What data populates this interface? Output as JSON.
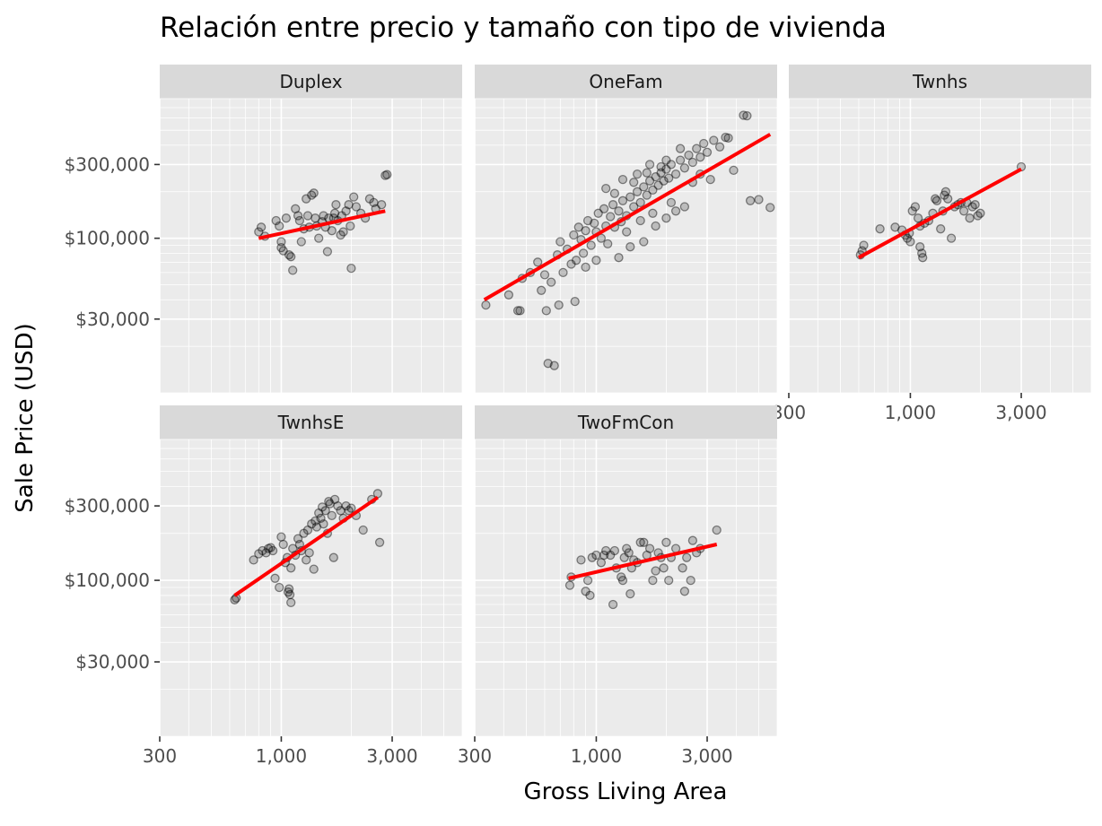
{
  "chart_data": {
    "type": "scatter",
    "title": "Relación entre precio y tamaño con tipo de vivienda",
    "xlabel": "Gross Living Area",
    "ylabel": "Sale Price (USD)",
    "x_scale": "log10",
    "y_scale": "log10",
    "xlim": [
      300,
      6000
    ],
    "ylim": [
      10000,
      800000
    ],
    "x_ticks": [
      300,
      1000,
      3000
    ],
    "x_tick_labels": [
      "300",
      "1,000",
      "3,000"
    ],
    "y_ticks": [
      30000,
      100000,
      300000
    ],
    "y_tick_labels": [
      "$30,000",
      "$100,000",
      "$300,000"
    ],
    "grid": true,
    "legend": "none",
    "point_style": {
      "color": "#000000",
      "opacity": 0.2
    },
    "fit_line": {
      "color": "#ff0000",
      "method": "linear regression on log scales"
    },
    "facets": [
      {
        "name": "Duplex",
        "fit": [
          [
            800,
            100000
          ],
          [
            2800,
            150000
          ]
        ],
        "points": [
          [
            800,
            110000
          ],
          [
            820,
            118000
          ],
          [
            850,
            103000
          ],
          [
            950,
            130000
          ],
          [
            980,
            120000
          ],
          [
            1000,
            95000
          ],
          [
            1000,
            87000
          ],
          [
            1020,
            83000
          ],
          [
            1050,
            135000
          ],
          [
            1080,
            78000
          ],
          [
            1100,
            76000
          ],
          [
            1120,
            62000
          ],
          [
            1150,
            155000
          ],
          [
            1180,
            140000
          ],
          [
            1200,
            130000
          ],
          [
            1220,
            95000
          ],
          [
            1250,
            115000
          ],
          [
            1280,
            180000
          ],
          [
            1300,
            140000
          ],
          [
            1320,
            118000
          ],
          [
            1350,
            190000
          ],
          [
            1380,
            196000
          ],
          [
            1400,
            135000
          ],
          [
            1420,
            120000
          ],
          [
            1450,
            100000
          ],
          [
            1500,
            128000
          ],
          [
            1520,
            140000
          ],
          [
            1550,
            118000
          ],
          [
            1580,
            82000
          ],
          [
            1600,
            135000
          ],
          [
            1650,
            112000
          ],
          [
            1680,
            135000
          ],
          [
            1700,
            145000
          ],
          [
            1720,
            165000
          ],
          [
            1750,
            130000
          ],
          [
            1800,
            105000
          ],
          [
            1820,
            140000
          ],
          [
            1850,
            110000
          ],
          [
            1900,
            150000
          ],
          [
            1950,
            165000
          ],
          [
            1980,
            120000
          ],
          [
            2000,
            64000
          ],
          [
            2050,
            185000
          ],
          [
            2100,
            160000
          ],
          [
            2200,
            145000
          ],
          [
            2300,
            135000
          ],
          [
            2400,
            180000
          ],
          [
            2500,
            170000
          ],
          [
            2550,
            155000
          ],
          [
            2700,
            165000
          ],
          [
            2800,
            255000
          ],
          [
            2850,
            258000
          ]
        ]
      },
      {
        "name": "OneFam",
        "fit": [
          [
            330,
            40000
          ],
          [
            5600,
            470000
          ]
        ],
        "points": [
          [
            335,
            37000
          ],
          [
            420,
            43000
          ],
          [
            460,
            34000
          ],
          [
            470,
            34000
          ],
          [
            580,
            46000
          ],
          [
            610,
            34000
          ],
          [
            620,
            15500
          ],
          [
            660,
            15000
          ],
          [
            690,
            37000
          ],
          [
            810,
            39000
          ],
          [
            480,
            55000
          ],
          [
            520,
            60000
          ],
          [
            560,
            70000
          ],
          [
            600,
            58000
          ],
          [
            640,
            52000
          ],
          [
            680,
            78000
          ],
          [
            700,
            95000
          ],
          [
            720,
            60000
          ],
          [
            750,
            85000
          ],
          [
            780,
            68000
          ],
          [
            800,
            105000
          ],
          [
            820,
            72000
          ],
          [
            840,
            118000
          ],
          [
            860,
            98000
          ],
          [
            880,
            80000
          ],
          [
            900,
            112000
          ],
          [
            920,
            130000
          ],
          [
            950,
            90000
          ],
          [
            980,
            125000
          ],
          [
            1000,
            110000
          ],
          [
            1020,
            145000
          ],
          [
            1050,
            100000
          ],
          [
            1080,
            155000
          ],
          [
            1100,
            120000
          ],
          [
            1120,
            92000
          ],
          [
            1150,
            138000
          ],
          [
            1180,
            165000
          ],
          [
            1200,
            118000
          ],
          [
            1250,
            150000
          ],
          [
            1280,
            128000
          ],
          [
            1300,
            175000
          ],
          [
            1350,
            140000
          ],
          [
            1400,
            185000
          ],
          [
            1450,
            160000
          ],
          [
            1500,
            200000
          ],
          [
            1550,
            170000
          ],
          [
            1600,
            215000
          ],
          [
            1650,
            190000
          ],
          [
            1700,
            235000
          ],
          [
            1750,
            205000
          ],
          [
            1800,
            250000
          ],
          [
            1850,
            220000
          ],
          [
            1900,
            265000
          ],
          [
            1950,
            235000
          ],
          [
            2000,
            280000
          ],
          [
            2050,
            245000
          ],
          [
            2100,
            300000
          ],
          [
            2200,
            260000
          ],
          [
            2300,
            320000
          ],
          [
            2400,
            285000
          ],
          [
            2500,
            345000
          ],
          [
            2600,
            310000
          ],
          [
            2700,
            380000
          ],
          [
            2800,
            335000
          ],
          [
            2900,
            410000
          ],
          [
            3000,
            360000
          ],
          [
            3200,
            430000
          ],
          [
            3400,
            390000
          ],
          [
            3600,
            450000
          ],
          [
            4300,
            625000
          ],
          [
            4450,
            620000
          ],
          [
            3700,
            445000
          ],
          [
            3900,
            275000
          ],
          [
            4600,
            175000
          ],
          [
            5000,
            178000
          ],
          [
            5600,
            158000
          ],
          [
            1250,
            75000
          ],
          [
            1400,
            88000
          ],
          [
            1600,
            95000
          ],
          [
            1800,
            120000
          ],
          [
            2000,
            135000
          ],
          [
            2200,
            150000
          ],
          [
            2400,
            160000
          ],
          [
            1000,
            72000
          ],
          [
            900,
            65000
          ],
          [
            1500,
            260000
          ],
          [
            1300,
            240000
          ],
          [
            1100,
            210000
          ],
          [
            1700,
            300000
          ],
          [
            2000,
            320000
          ],
          [
            2300,
            380000
          ],
          [
            1200,
            195000
          ],
          [
            1450,
            230000
          ],
          [
            1650,
            265000
          ],
          [
            1900,
            290000
          ],
          [
            2600,
            230000
          ],
          [
            2800,
            260000
          ],
          [
            3100,
            240000
          ],
          [
            1350,
            110000
          ],
          [
            1550,
            130000
          ],
          [
            1750,
            145000
          ],
          [
            2100,
            170000
          ]
        ]
      },
      {
        "name": "Twnhs",
        "fit": [
          [
            600,
            75000
          ],
          [
            3000,
            280000
          ]
        ],
        "points": [
          [
            610,
            78000
          ],
          [
            620,
            83000
          ],
          [
            630,
            90000
          ],
          [
            740,
            115000
          ],
          [
            860,
            118000
          ],
          [
            920,
            113000
          ],
          [
            950,
            105000
          ],
          [
            970,
            100000
          ],
          [
            990,
            108000
          ],
          [
            1000,
            95000
          ],
          [
            1020,
            150000
          ],
          [
            1050,
            160000
          ],
          [
            1080,
            135000
          ],
          [
            1100,
            120000
          ],
          [
            1100,
            88000
          ],
          [
            1120,
            80000
          ],
          [
            1130,
            75000
          ],
          [
            1150,
            125000
          ],
          [
            1200,
            130000
          ],
          [
            1250,
            145000
          ],
          [
            1280,
            180000
          ],
          [
            1300,
            175000
          ],
          [
            1350,
            115000
          ],
          [
            1380,
            150000
          ],
          [
            1400,
            190000
          ],
          [
            1420,
            200000
          ],
          [
            1450,
            180000
          ],
          [
            1500,
            100000
          ],
          [
            1550,
            160000
          ],
          [
            1600,
            165000
          ],
          [
            1650,
            170000
          ],
          [
            1700,
            150000
          ],
          [
            1750,
            170000
          ],
          [
            1800,
            135000
          ],
          [
            1850,
            160000
          ],
          [
            1900,
            165000
          ],
          [
            1950,
            140000
          ],
          [
            2000,
            145000
          ],
          [
            3000,
            290000
          ]
        ]
      },
      {
        "name": "TwnhsE",
        "fit": [
          [
            630,
            80000
          ],
          [
            2600,
            340000
          ]
        ],
        "points": [
          [
            630,
            75000
          ],
          [
            640,
            77000
          ],
          [
            760,
            135000
          ],
          [
            800,
            148000
          ],
          [
            830,
            155000
          ],
          [
            860,
            150000
          ],
          [
            880,
            160000
          ],
          [
            900,
            162000
          ],
          [
            920,
            155000
          ],
          [
            940,
            103000
          ],
          [
            980,
            90000
          ],
          [
            1000,
            190000
          ],
          [
            1020,
            170000
          ],
          [
            1040,
            130000
          ],
          [
            1060,
            140000
          ],
          [
            1070,
            84000
          ],
          [
            1080,
            88000
          ],
          [
            1090,
            81000
          ],
          [
            1100,
            120000
          ],
          [
            1100,
            72000
          ],
          [
            1120,
            160000
          ],
          [
            1150,
            145000
          ],
          [
            1180,
            185000
          ],
          [
            1200,
            170000
          ],
          [
            1220,
            155000
          ],
          [
            1250,
            200000
          ],
          [
            1280,
            135000
          ],
          [
            1300,
            210000
          ],
          [
            1320,
            150000
          ],
          [
            1350,
            230000
          ],
          [
            1380,
            118000
          ],
          [
            1400,
            240000
          ],
          [
            1420,
            220000
          ],
          [
            1450,
            270000
          ],
          [
            1480,
            250000
          ],
          [
            1500,
            295000
          ],
          [
            1520,
            230000
          ],
          [
            1550,
            280000
          ],
          [
            1580,
            200000
          ],
          [
            1600,
            320000
          ],
          [
            1620,
            310000
          ],
          [
            1650,
            260000
          ],
          [
            1680,
            140000
          ],
          [
            1700,
            330000
          ],
          [
            1750,
            300000
          ],
          [
            1800,
            280000
          ],
          [
            1850,
            250000
          ],
          [
            1900,
            300000
          ],
          [
            1950,
            280000
          ],
          [
            2000,
            290000
          ],
          [
            2100,
            260000
          ],
          [
            2250,
            210000
          ],
          [
            2450,
            330000
          ],
          [
            2600,
            360000
          ],
          [
            2650,
            175000
          ]
        ]
      },
      {
        "name": "TwoFmCon",
        "fit": [
          [
            760,
            103000
          ],
          [
            3300,
            170000
          ]
        ],
        "points": [
          [
            770,
            93000
          ],
          [
            780,
            105000
          ],
          [
            860,
            135000
          ],
          [
            900,
            85000
          ],
          [
            920,
            100000
          ],
          [
            940,
            80000
          ],
          [
            960,
            140000
          ],
          [
            1000,
            145000
          ],
          [
            1050,
            130000
          ],
          [
            1080,
            145000
          ],
          [
            1100,
            155000
          ],
          [
            1150,
            145000
          ],
          [
            1180,
            70000
          ],
          [
            1200,
            155000
          ],
          [
            1220,
            120000
          ],
          [
            1280,
            105000
          ],
          [
            1300,
            100000
          ],
          [
            1320,
            140000
          ],
          [
            1350,
            160000
          ],
          [
            1380,
            150000
          ],
          [
            1400,
            82000
          ],
          [
            1420,
            120000
          ],
          [
            1450,
            135000
          ],
          [
            1500,
            130000
          ],
          [
            1550,
            175000
          ],
          [
            1600,
            175000
          ],
          [
            1650,
            145000
          ],
          [
            1700,
            160000
          ],
          [
            1750,
            100000
          ],
          [
            1800,
            115000
          ],
          [
            1850,
            150000
          ],
          [
            1900,
            140000
          ],
          [
            1950,
            120000
          ],
          [
            2000,
            175000
          ],
          [
            2050,
            100000
          ],
          [
            2100,
            140000
          ],
          [
            2200,
            160000
          ],
          [
            2350,
            120000
          ],
          [
            2400,
            85000
          ],
          [
            2450,
            140000
          ],
          [
            2550,
            100000
          ],
          [
            2600,
            180000
          ],
          [
            2700,
            150000
          ],
          [
            2800,
            160000
          ],
          [
            3300,
            210000
          ]
        ]
      }
    ]
  }
}
